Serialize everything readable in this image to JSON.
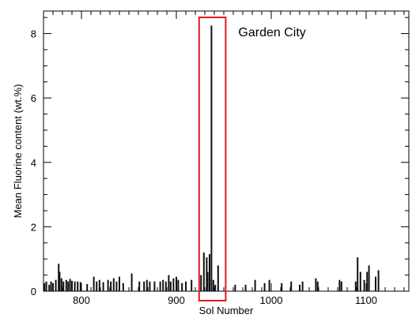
{
  "chart_data": {
    "type": "bar",
    "xlabel": "Sol Number",
    "ylabel": "Mean Fluorine content (wt.%)",
    "xlim": [
      760,
      1145
    ],
    "ylim": [
      0,
      8.7
    ],
    "x_ticks": [
      800,
      900,
      1000,
      1100
    ],
    "y_ticks": [
      0,
      2,
      4,
      6,
      8
    ],
    "x_minor_step": 10,
    "y_minor_step": 0.5,
    "grid": false,
    "bar_color": "#111111",
    "highlight_color": "#e41a1c",
    "annotation": {
      "text": "Garden City",
      "highlight_range": [
        924,
        952
      ]
    },
    "x": [
      761,
      763,
      766,
      768,
      770,
      773,
      776,
      777,
      779,
      781,
      784,
      786,
      788,
      790,
      793,
      796,
      799,
      806,
      813,
      816,
      819,
      823,
      828,
      831,
      834,
      837,
      840,
      844,
      853,
      861,
      866,
      869,
      872,
      877,
      883,
      886,
      889,
      892,
      894,
      897,
      900,
      902,
      906,
      910,
      916,
      926,
      929,
      932,
      933,
      935,
      937,
      939,
      941,
      944,
      962,
      973,
      983,
      993,
      998,
      1011,
      1021,
      1030,
      1033,
      1047,
      1049,
      1072,
      1074,
      1089,
      1091,
      1094,
      1098,
      1101,
      1103,
      1110,
      1113
    ],
    "values": [
      0.25,
      0.3,
      0.2,
      0.3,
      0.25,
      0.35,
      0.85,
      0.6,
      0.4,
      0.3,
      0.35,
      0.3,
      0.38,
      0.32,
      0.3,
      0.3,
      0.28,
      0.22,
      0.45,
      0.3,
      0.35,
      0.28,
      0.35,
      0.3,
      0.4,
      0.3,
      0.45,
      0.25,
      0.55,
      0.3,
      0.3,
      0.35,
      0.3,
      0.3,
      0.3,
      0.35,
      0.3,
      0.5,
      0.3,
      0.4,
      0.45,
      0.35,
      0.25,
      0.3,
      0.35,
      0.5,
      1.2,
      1.05,
      0.6,
      1.15,
      8.25,
      0.35,
      0.2,
      0.8,
      0.2,
      0.2,
      0.35,
      0.25,
      0.35,
      0.25,
      0.3,
      0.2,
      0.3,
      0.4,
      0.3,
      0.35,
      0.3,
      0.3,
      1.05,
      0.6,
      0.35,
      0.6,
      0.8,
      0.45,
      0.65
    ]
  }
}
